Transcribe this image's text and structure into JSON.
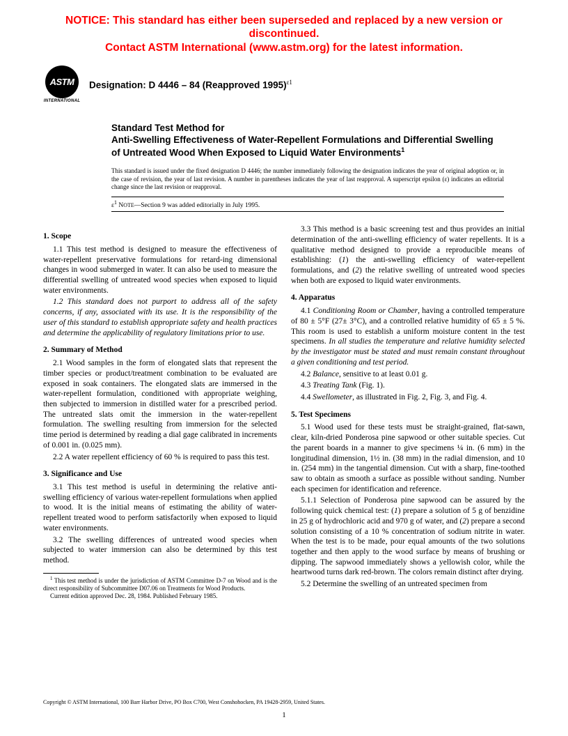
{
  "notice": {
    "line1": "NOTICE: This standard has either been superseded and replaced by a new version or discontinued.",
    "line2": "Contact ASTM International (www.astm.org) for the latest information.",
    "color": "#ff0000"
  },
  "logo": {
    "abbr": "ASTM",
    "sub": "INTERNATIONAL"
  },
  "designation": {
    "label": "Designation: D 4446 – 84 (Reapproved 1995)",
    "sup": "ε1"
  },
  "title": {
    "pre": "Standard Test Method for",
    "main": "Anti-Swelling Effectiveness of Water-Repellent Formulations and Differential Swelling of Untreated Wood When Exposed to Liquid Water Environments",
    "sup": "1"
  },
  "issuance": "This standard is issued under the fixed designation D 4446; the number immediately following the designation indicates the year of original adoption or, in the case of revision, the year of last revision. A number in parentheses indicates the year of last reapproval. A superscript epsilon (ε) indicates an editorial change since the last revision or reapproval.",
  "eps_note": {
    "sup": "ε1",
    "label": "Note",
    "text": "—Section 9 was added editorially in July 1995."
  },
  "sections": {
    "s1": {
      "head": "1. Scope",
      "p1": "1.1 This test method is designed to measure the effectiveness of water-repellent preservative formulations for retard-ing dimensional changes in wood submerged in water. It can also be used to measure the differential swelling of untreated wood species when exposed to liquid water environments.",
      "p2": "1.2 This standard does not purport to address all of the safety concerns, if any, associated with its use. It is the responsibility of the user of this standard to establish appropriate safety and health practices and determine the applicability of regulatory limitations prior to use."
    },
    "s2": {
      "head": "2. Summary of Method",
      "p1": "2.1 Wood samples in the form of elongated slats that represent the timber species or product/treatment combination to be evaluated are exposed in soak containers. The elongated slats are immersed in the water-repellent formulation, conditioned with appropriate weighing, then subjected to immersion in distilled water for a prescribed period. The untreated slats omit the immersion in the water-repellent formulation. The swelling resulting from immersion for the selected time period is determined by reading a dial gage calibrated in increments of 0.001 in. (0.025 mm).",
      "p2": "2.2 A water repellent efficiency of 60 % is required to pass this test."
    },
    "s3": {
      "head": "3. Significance and Use",
      "p1": "3.1 This test method is useful in determining the relative anti-swelling efficiency of various water-repellent formulations when applied to wood. It is the initial means of estimating the ability of water-repellent treated wood to perform satisfactorily when exposed to liquid water environments.",
      "p2": "3.2 The swelling differences of untreated wood species when subjected to water immersion can also be determined by this test method.",
      "p3a": "3.3 This method is a basic screening test and thus provides an initial determination of the anti-swelling efficiency of water repellents. It is a qualitative method designed to provide a reproducible means of establishing: (",
      "p3b": "1",
      "p3c": ") the anti-swelling efficiency of water-repellent formulations, and (",
      "p3d": "2",
      "p3e": ") the relative swelling of untreated wood species when both are exposed to liquid water environments."
    },
    "s4": {
      "head": "4. Apparatus",
      "p1a": "4.1 ",
      "p1b": "Conditioning Room or Chamber",
      "p1c": ", having a controlled temperature of 80 ± 5°F (27± 3°C), and a controlled relative humidity of 65 ± 5 %. This room is used to establish a uniform moisture content in the test specimens. ",
      "p1d": "In all studies the temperature and relative humidity selected by the investigator must be stated and must remain constant throughout a given conditioning and test period.",
      "p2a": "4.2 ",
      "p2b": "Balance",
      "p2c": ", sensitive to at least 0.01 g.",
      "p3a": "4.3 ",
      "p3b": "Treating Tank",
      "p3c": " (Fig. 1).",
      "p4a": "4.4 ",
      "p4b": "Swellometer",
      "p4c": ", as illustrated in Fig. 2, Fig. 3, and Fig. 4."
    },
    "s5": {
      "head": "5. Test Specimens",
      "p1": "5.1 Wood used for these tests must be straight-grained, flat-sawn, clear, kiln-dried Ponderosa pine sapwood or other suitable species. Cut the parent boards in a manner to give specimens ¼ in. (6 mm) in the longitudinal dimension, 1½ in. (38 mm) in the radial dimension, and 10 in. (254 mm) in the tangential dimension. Cut with a sharp, fine-toothed saw to obtain as smooth a surface as possible without sanding. Number each specimen for identification and reference.",
      "p2a": "5.1.1 Selection of Ponderosa pine sapwood can be assured by the following quick chemical test: (",
      "p2b": "1",
      "p2c": ") prepare a solution of 5 g of benzidine in 25 g of hydrochloric acid and 970 g of water, and (",
      "p2d": "2",
      "p2e": ") prepare a second solution consisting of a 10 % concentration of sodium nitrite in water. When the test is to be made, pour equal amounts of the two solutions together and then apply to the wood surface by means of brushing or dipping. The sapwood immediately shows a yellowish color, while the heartwood turns dark red-brown. The colors remain distinct after drying.",
      "p3": "5.2 Determine the swelling of an untreated specimen from"
    }
  },
  "footnote": {
    "f1": "This test method is under the jurisdiction of ASTM Committee D-7 on Wood and is the direct responsibility of Subcommittee D07.06 on Treatments for Wood Products.",
    "f2": "Current edition approved Dec. 28, 1984. Published February 1985."
  },
  "copyright": "Copyright © ASTM International, 100 Barr Harbor Drive, PO Box C700, West Conshohocken, PA 19428-2959, United States.",
  "pagenum": "1"
}
